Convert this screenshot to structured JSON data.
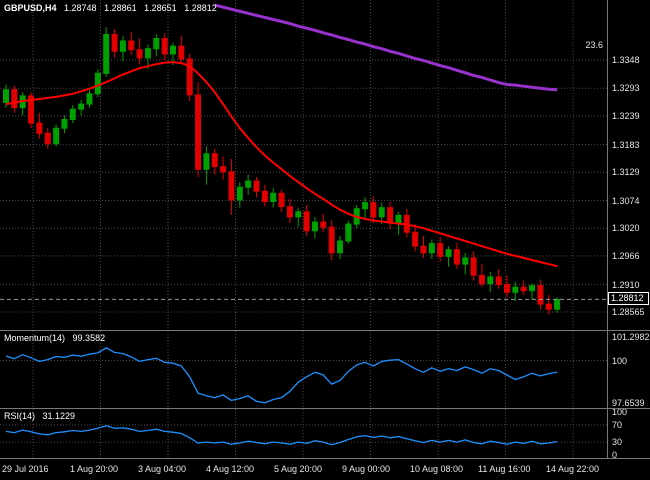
{
  "header": {
    "symbol": "GBPUSD,H4",
    "open": "1.28748",
    "high": "1.28861",
    "low": "1.28651",
    "close": "1.28812"
  },
  "colors": {
    "background": "#000000",
    "grid": "#4a4a4a",
    "bull": "#00A000",
    "bear": "#E00000",
    "indicator": "#1E90FF",
    "separator": "#787878",
    "axis_text": "#E6E6E6",
    "current_price_line": "#9A9A9A"
  },
  "time_axis": {
    "ticks": [
      "29 Jul 2016",
      "1 Aug 20:00",
      "3 Aug 04:00",
      "4 Aug 12:00",
      "5 Aug 20:00",
      "9 Aug 00:00",
      "10 Aug 08:00",
      "11 Aug 16:00",
      "14 Aug 22:00"
    ]
  },
  "chart_data": [
    {
      "type": "candlestick",
      "title": "GBPUSD H4",
      "ylim": [
        1.28215,
        1.3465
      ],
      "y_ticks": [
        {
          "label": "1.3348",
          "value": 1.3348,
          "grid": true
        },
        {
          "label": "1.3293",
          "value": 1.3293,
          "grid": true
        },
        {
          "label": "1.3239",
          "value": 1.3239,
          "grid": true
        },
        {
          "label": "1.3183",
          "value": 1.3183,
          "grid": true
        },
        {
          "label": "1.3129",
          "value": 1.3129,
          "grid": true
        },
        {
          "label": "1.3074",
          "value": 1.3074,
          "grid": true
        },
        {
          "label": "1.3020",
          "value": 1.302,
          "grid": true
        },
        {
          "label": "1.2966",
          "value": 1.2966,
          "grid": true
        },
        {
          "label": "1.2910",
          "value": 1.291,
          "grid": true
        },
        {
          "label": "1.28565",
          "value": 1.28565,
          "grid": true
        }
      ],
      "current_price": {
        "label": "1.28812",
        "value": 1.28812
      },
      "fib_level": {
        "label": "23.6",
        "value": 1.3377
      },
      "candles": [
        [
          1.3265,
          1.33,
          1.3255,
          1.329
        ],
        [
          1.329,
          1.3298,
          1.3245,
          1.3255
        ],
        [
          1.3255,
          1.3285,
          1.324,
          1.3278
        ],
        [
          1.3278,
          1.3285,
          1.3215,
          1.3225
        ],
        [
          1.3225,
          1.3245,
          1.3195,
          1.3205
        ],
        [
          1.3205,
          1.3215,
          1.3175,
          1.3185
        ],
        [
          1.3185,
          1.3222,
          1.318,
          1.3215
        ],
        [
          1.3215,
          1.324,
          1.3205,
          1.3232
        ],
        [
          1.3232,
          1.326,
          1.3225,
          1.3252
        ],
        [
          1.3252,
          1.327,
          1.324,
          1.3262
        ],
        [
          1.3262,
          1.329,
          1.3255,
          1.3282
        ],
        [
          1.3282,
          1.333,
          1.3275,
          1.3322
        ],
        [
          1.3322,
          1.3412,
          1.3315,
          1.3398
        ],
        [
          1.3398,
          1.3408,
          1.3352,
          1.3365
        ],
        [
          1.3365,
          1.3395,
          1.3345,
          1.3385
        ],
        [
          1.3385,
          1.3402,
          1.3358,
          1.3368
        ],
        [
          1.3368,
          1.339,
          1.334,
          1.3352
        ],
        [
          1.3352,
          1.3378,
          1.333,
          1.337
        ],
        [
          1.337,
          1.3398,
          1.3355,
          1.339
        ],
        [
          1.339,
          1.34,
          1.3348,
          1.336
        ],
        [
          1.336,
          1.3382,
          1.3338,
          1.3375
        ],
        [
          1.3375,
          1.3395,
          1.334,
          1.335
        ],
        [
          1.335,
          1.336,
          1.3268,
          1.328
        ],
        [
          1.328,
          1.3305,
          1.312,
          1.3135
        ],
        [
          1.3135,
          1.318,
          1.3105,
          1.3165
        ],
        [
          1.3165,
          1.3175,
          1.3125,
          1.314
        ],
        [
          1.314,
          1.316,
          1.3115,
          1.313
        ],
        [
          1.313,
          1.3155,
          1.3046,
          1.3075
        ],
        [
          1.3075,
          1.311,
          1.306,
          1.31
        ],
        [
          1.31,
          1.3125,
          1.3085,
          1.3112
        ],
        [
          1.3112,
          1.312,
          1.308,
          1.3092
        ],
        [
          1.3092,
          1.3105,
          1.3062,
          1.3072
        ],
        [
          1.3072,
          1.3098,
          1.306,
          1.3088
        ],
        [
          1.3088,
          1.3095,
          1.3052,
          1.3062
        ],
        [
          1.3062,
          1.3078,
          1.303,
          1.3042
        ],
        [
          1.3042,
          1.306,
          1.3022,
          1.3052
        ],
        [
          1.3052,
          1.3065,
          1.3005,
          1.3015
        ],
        [
          1.3015,
          1.3042,
          1.3,
          1.3032
        ],
        [
          1.3032,
          1.3048,
          1.3012,
          1.3022
        ],
        [
          1.3022,
          1.3035,
          1.2958,
          1.2972
        ],
        [
          1.2972,
          1.3005,
          1.296,
          1.2995
        ],
        [
          1.2995,
          1.3035,
          1.299,
          1.3028
        ],
        [
          1.3028,
          1.3065,
          1.302,
          1.3058
        ],
        [
          1.3058,
          1.308,
          1.304,
          1.307
        ],
        [
          1.307,
          1.3082,
          1.303,
          1.3042
        ],
        [
          1.3042,
          1.307,
          1.3028,
          1.306
        ],
        [
          1.306,
          1.3072,
          1.3018,
          1.303
        ],
        [
          1.303,
          1.3052,
          1.3008,
          1.3045
        ],
        [
          1.3045,
          1.3058,
          1.3002,
          1.3012
        ],
        [
          1.3012,
          1.3028,
          1.2975,
          1.2985
        ],
        [
          1.2985,
          1.3005,
          1.2962,
          1.2972
        ],
        [
          1.2972,
          1.2998,
          1.296,
          1.299
        ],
        [
          1.299,
          1.3002,
          1.2955,
          1.2965
        ],
        [
          1.2965,
          1.2985,
          1.2945,
          1.2978
        ],
        [
          1.2978,
          1.2992,
          1.294,
          1.295
        ],
        [
          1.295,
          1.2972,
          1.293,
          1.2962
        ],
        [
          1.2962,
          1.2975,
          1.2918,
          1.2928
        ],
        [
          1.2928,
          1.295,
          1.2905,
          1.2912
        ],
        [
          1.2912,
          1.2935,
          1.2895,
          1.2925
        ],
        [
          1.2925,
          1.294,
          1.2902,
          1.291
        ],
        [
          1.291,
          1.2928,
          1.2885,
          1.2895
        ],
        [
          1.2895,
          1.2915,
          1.2878,
          1.2905
        ],
        [
          1.2905,
          1.2918,
          1.289,
          1.2898
        ],
        [
          1.2898,
          1.2912,
          1.288,
          1.2908
        ],
        [
          1.2908,
          1.292,
          1.2862,
          1.2872
        ],
        [
          1.2872,
          1.289,
          1.2852,
          1.2862
        ],
        [
          1.2862,
          1.2885,
          1.2855,
          1.28812
        ]
      ],
      "overlays": [
        {
          "name": "moving-average-fast",
          "color": "#FF0000",
          "width": 2,
          "start_index": 0,
          "values": [
            1.3262,
            1.3265,
            1.3268,
            1.327,
            1.3272,
            1.3274,
            1.3276,
            1.3279,
            1.3282,
            1.3287,
            1.3292,
            1.3298,
            1.3305,
            1.3312,
            1.332,
            1.3326,
            1.3332,
            1.3336,
            1.334,
            1.3343,
            1.3344,
            1.3342,
            1.3336,
            1.3322,
            1.3305,
            1.3285,
            1.3262,
            1.3238,
            1.3215,
            1.3196,
            1.3178,
            1.3162,
            1.3148,
            1.3135,
            1.3122,
            1.311,
            1.3098,
            1.3087,
            1.3077,
            1.3066,
            1.3056,
            1.3048,
            1.3042,
            1.3038,
            1.3035,
            1.3033,
            1.3031,
            1.3029,
            1.3027,
            1.3024,
            1.302,
            1.3015,
            1.301,
            1.3005,
            1.3,
            1.2995,
            1.299,
            1.2985,
            1.298,
            1.2975,
            1.297,
            1.2966,
            1.2962,
            1.2958,
            1.2954,
            1.295,
            1.2946
          ]
        },
        {
          "name": "moving-average-slow",
          "color": "#9932CC",
          "width": 3,
          "start_index": 25,
          "values": [
            1.3455,
            1.3451,
            1.3447,
            1.3443,
            1.3439,
            1.3435,
            1.3431,
            1.3427,
            1.3423,
            1.3419,
            1.3414,
            1.341,
            1.3406,
            1.3401,
            1.3397,
            1.3392,
            1.3388,
            1.3383,
            1.3379,
            1.3374,
            1.337,
            1.3365,
            1.3361,
            1.3356,
            1.3351,
            1.3347,
            1.3342,
            1.3337,
            1.3333,
            1.3328,
            1.3323,
            1.3318,
            1.3314,
            1.3309,
            1.3304,
            1.33,
            1.3299,
            1.3297,
            1.3295,
            1.3293,
            1.3291,
            1.329
          ]
        }
      ]
    },
    {
      "type": "line",
      "name": "Momentum(14)",
      "current_value": "99.3582",
      "ylim": [
        97.378,
        101.63
      ],
      "y_ticks": [
        {
          "label": "101.2982",
          "value": 101.2982,
          "grid": false
        },
        {
          "label": "100",
          "value": 100,
          "grid": true
        },
        {
          "label": "97.6539",
          "value": 97.6539,
          "grid": false
        }
      ],
      "values": [
        100.25,
        100.1,
        100.32,
        100.15,
        99.95,
        100.05,
        100.22,
        100.18,
        100.3,
        100.24,
        100.35,
        100.42,
        100.7,
        100.45,
        100.38,
        100.2,
        99.95,
        100.05,
        100.12,
        99.9,
        99.85,
        99.7,
        99.1,
        98.2,
        98.05,
        97.95,
        98.1,
        97.8,
        97.9,
        98.05,
        97.75,
        97.66,
        97.85,
        97.95,
        98.3,
        98.8,
        99.1,
        99.35,
        99.2,
        98.7,
        98.9,
        99.4,
        99.75,
        99.9,
        99.7,
        99.95,
        100.02,
        100.05,
        99.8,
        99.55,
        99.35,
        99.6,
        99.4,
        99.55,
        99.45,
        99.65,
        99.5,
        99.3,
        99.55,
        99.45,
        99.2,
        98.95,
        99.1,
        99.3,
        99.15,
        99.28,
        99.3582
      ]
    },
    {
      "type": "line",
      "name": "RSI(14)",
      "current_value": "31.1229",
      "ylim": [
        -6.98,
        106.98
      ],
      "y_ticks": [
        {
          "label": "100",
          "value": 100,
          "grid": false
        },
        {
          "label": "70",
          "value": 70,
          "grid": true
        },
        {
          "label": "30",
          "value": 30,
          "grid": true
        },
        {
          "label": "0",
          "value": 0,
          "grid": false
        }
      ],
      "values": [
        55,
        52,
        58,
        54,
        49,
        47,
        52,
        54,
        57,
        55,
        58,
        62,
        68,
        62,
        63,
        60,
        55,
        57,
        60,
        55,
        53,
        50,
        40,
        28,
        30,
        28,
        30,
        25,
        28,
        32,
        29,
        26,
        30,
        28,
        25,
        30,
        27,
        33,
        30,
        24,
        29,
        36,
        42,
        45,
        41,
        44,
        40,
        43,
        38,
        33,
        29,
        34,
        30,
        34,
        30,
        35,
        29,
        26,
        32,
        29,
        25,
        30,
        27,
        32,
        26,
        28,
        31.12
      ]
    }
  ]
}
